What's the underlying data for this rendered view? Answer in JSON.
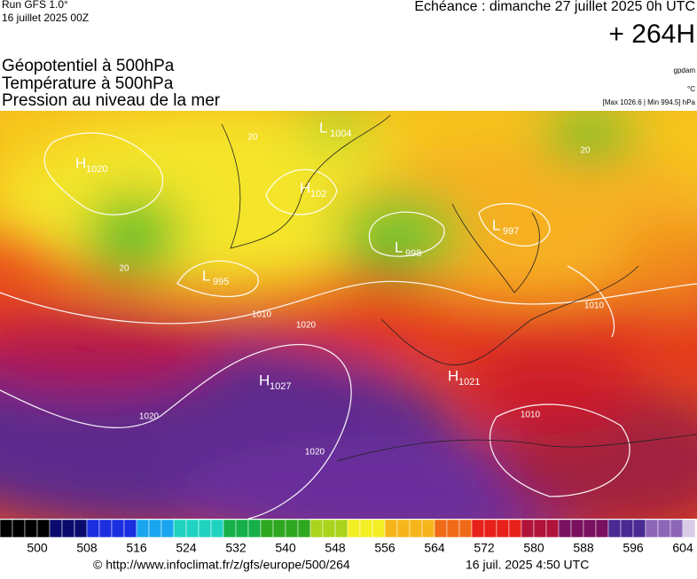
{
  "header": {
    "run": "Run GFS 1.0°",
    "date": "16 juillet 2025 00Z",
    "echeance": "Echéance : dimanche 27 juillet 2025 0h UTC",
    "offset": "+ 264H",
    "titles": [
      "Géopotentiel à 500hPa",
      "Température à 500hPa",
      "Pression au niveau de la mer"
    ],
    "units": [
      "gpdam",
      "°C",
      "[Max 1026.6 | Min 994.5] hPa"
    ]
  },
  "map": {
    "centers": [
      {
        "letter": "H",
        "value": "1020"
      },
      {
        "letter": "L",
        "value": "1004"
      },
      {
        "letter": "H",
        "value": "102"
      },
      {
        "letter": "L",
        "value": "995"
      },
      {
        "letter": "L",
        "value": "998"
      },
      {
        "letter": "L",
        "value": "997"
      },
      {
        "letter": "H",
        "value": "1027"
      },
      {
        "letter": "H",
        "value": "1021"
      }
    ],
    "contour_labels": [
      "1010",
      "1020",
      "1020",
      "1020",
      "1010",
      "1010",
      "20",
      "20",
      "20"
    ]
  },
  "colorbar": {
    "labels": [
      500,
      508,
      516,
      524,
      532,
      540,
      548,
      556,
      564,
      572,
      580,
      588,
      596,
      604
    ]
  },
  "footer": {
    "url": "© http://www.infoclimat.fr/z/gfs/europe/500/264",
    "timestamp": "16 juil. 2025  4:50 UTC"
  }
}
